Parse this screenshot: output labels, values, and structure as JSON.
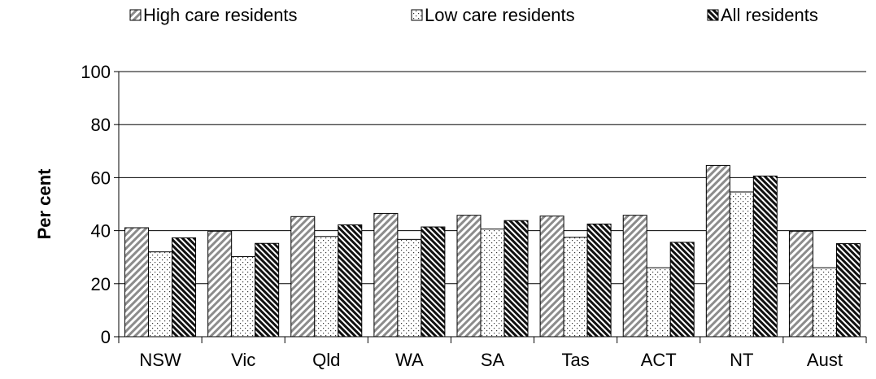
{
  "chart_data": {
    "type": "bar",
    "title": "",
    "xlabel": "",
    "ylabel": "Per cent",
    "ylim": [
      0,
      100
    ],
    "yticks": [
      0,
      20,
      40,
      60,
      80,
      100
    ],
    "grid": true,
    "legend_position": "top",
    "categories": [
      "NSW",
      "Vic",
      "Qld",
      "WA",
      "SA",
      "Tas",
      "ACT",
      "NT",
      "Aust"
    ],
    "series": [
      {
        "name": "High care residents",
        "pattern": "diagonal",
        "values": [
          41.1,
          39.8,
          45.3,
          46.5,
          45.8,
          45.5,
          45.8,
          64.6,
          39.8
        ]
      },
      {
        "name": "Low care residents",
        "pattern": "dots",
        "values": [
          32.0,
          30.2,
          37.8,
          36.7,
          40.6,
          37.5,
          26.0,
          54.6,
          26.0
        ]
      },
      {
        "name": "All residents",
        "pattern": "dense-diagonal",
        "values": [
          37.3,
          35.2,
          42.2,
          41.4,
          43.8,
          42.5,
          35.6,
          60.6,
          35.1
        ]
      }
    ]
  }
}
